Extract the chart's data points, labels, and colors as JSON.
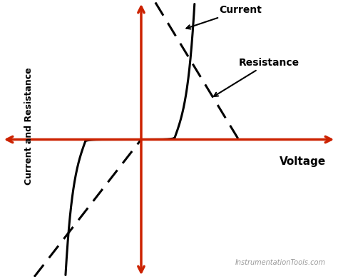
{
  "background_color": "#ffffff",
  "axis_color": "#cc2200",
  "curve_color": "#000000",
  "ylabel": "Current and Resistance",
  "xlabel": "Voltage",
  "label_current": "Current",
  "label_resistance": "Resistance",
  "watermark": "InstrumentationTools.com",
  "axis_linewidth": 2.5,
  "curve_linewidth": 2.2,
  "dashed_linewidth": 2.2,
  "xlim": [
    -5,
    7
  ],
  "ylim": [
    -5,
    5
  ]
}
